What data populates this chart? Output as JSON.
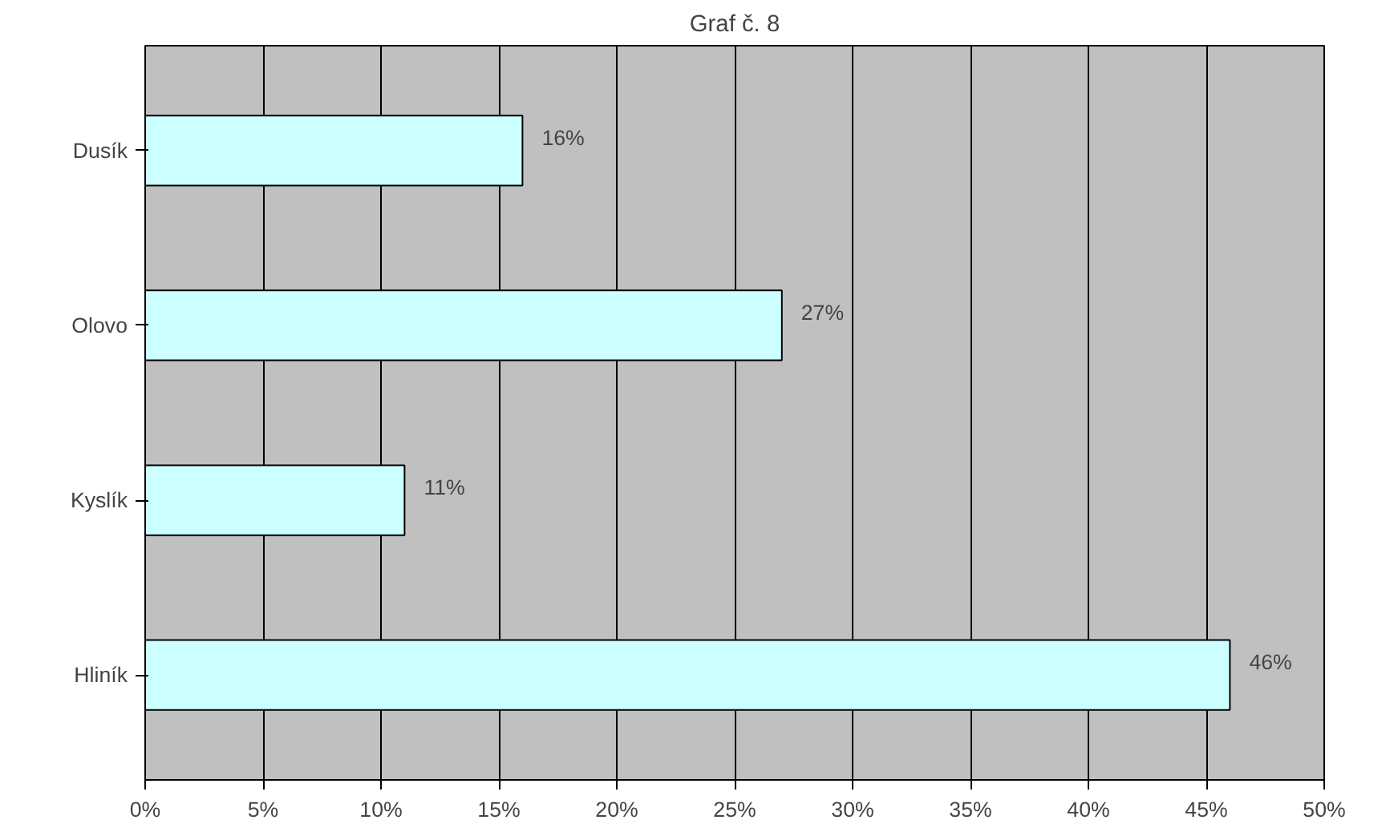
{
  "chart_data": {
    "type": "bar",
    "orientation": "horizontal",
    "title": "Graf č. 8",
    "categories": [
      "Dusík",
      "Olovo",
      "Kyslík",
      "Hliník"
    ],
    "values": [
      16,
      27,
      11,
      46
    ],
    "value_labels": [
      "16%",
      "27%",
      "11%",
      "46%"
    ],
    "color": "#ccffff",
    "xlim": [
      0,
      50
    ],
    "xticks": [
      {
        "value": 0,
        "label": "0%"
      },
      {
        "value": 5,
        "label": "5%"
      },
      {
        "value": 10,
        "label": "10%"
      },
      {
        "value": 15,
        "label": "15%"
      },
      {
        "value": 20,
        "label": "20%"
      },
      {
        "value": 25,
        "label": "25%"
      },
      {
        "value": 30,
        "label": "30%"
      },
      {
        "value": 35,
        "label": "35%"
      },
      {
        "value": 40,
        "label": "40%"
      },
      {
        "value": 45,
        "label": "45%"
      },
      {
        "value": 50,
        "label": "50%"
      }
    ],
    "grid": "x"
  }
}
